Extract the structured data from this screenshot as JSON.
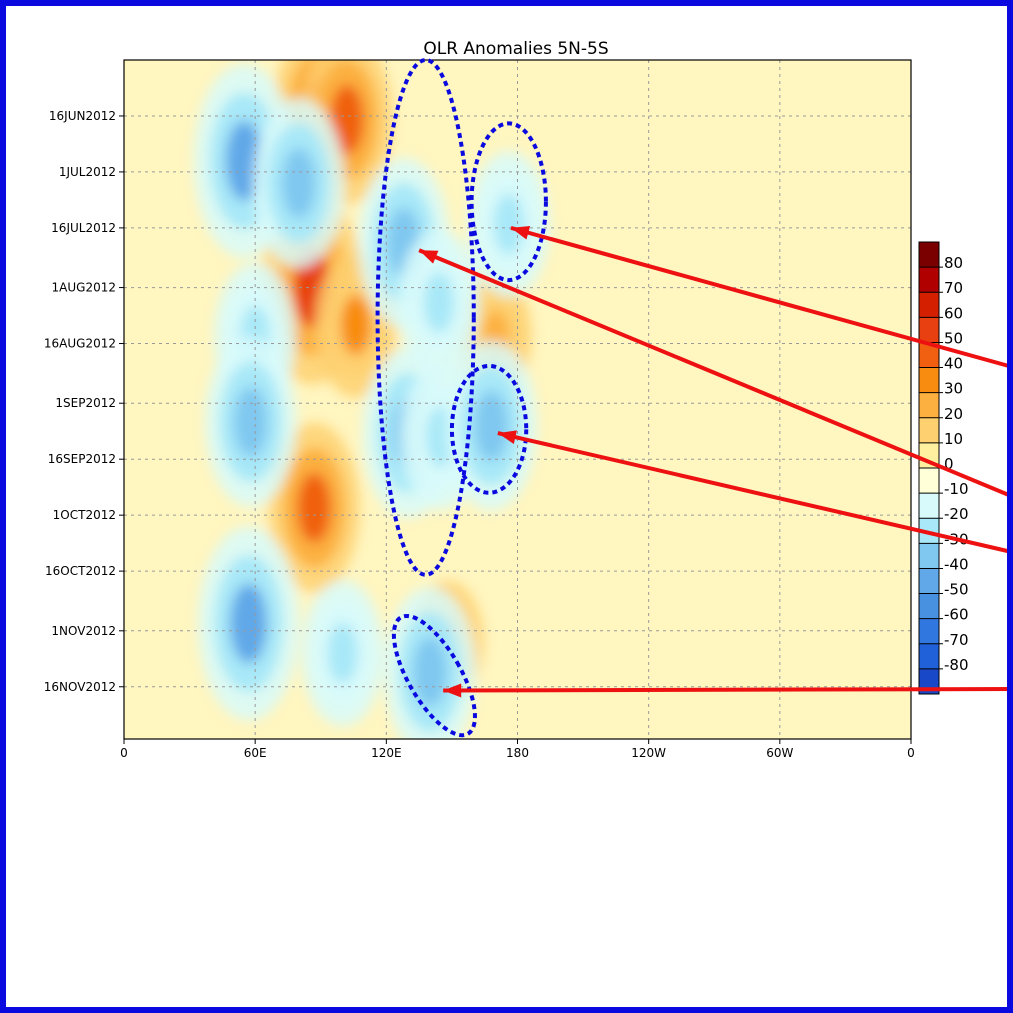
{
  "chart_data": {
    "type": "heatmap",
    "title": "OLR Anomalies 5N-5S",
    "xlabel": "",
    "ylabel": "",
    "x_ticks": [
      "0",
      "60E",
      "120E",
      "180",
      "120W",
      "60W",
      "0"
    ],
    "x_tick_values": [
      0,
      60,
      120,
      180,
      240,
      300,
      360
    ],
    "y_ticks": [
      "16JUN2012",
      "1JUL2012",
      "16JUL2012",
      "1AUG2012",
      "16AUG2012",
      "1SEP2012",
      "16SEP2012",
      "1OCT2012",
      "16OCT2012",
      "1NOV2012",
      "16NOV2012"
    ],
    "xlim": [
      0,
      360
    ],
    "ylim": [
      "2012-06-01",
      "2012-11-30"
    ],
    "grid": true,
    "colorbar": {
      "labels": [
        "80",
        "70",
        "60",
        "50",
        "40",
        "30",
        "20",
        "10",
        "0",
        "-10",
        "-20",
        "-30",
        "-40",
        "-50",
        "-60",
        "-70",
        "-80"
      ],
      "colors": [
        "#7a0000",
        "#b00000",
        "#d42000",
        "#e84010",
        "#f06010",
        "#f88c10",
        "#fcb040",
        "#fed070",
        "#fff0a0",
        "#ffffd8",
        "#d8fafa",
        "#a8e8f8",
        "#80c8f0",
        "#60a8e8",
        "#4890e0",
        "#3078e0",
        "#2060d8",
        "#1848c8"
      ]
    },
    "annotations": [
      {
        "shape": "ellipse",
        "style": "dotted",
        "color": "#0a0ae0",
        "lon_center": 138,
        "date_center": "2012-08-09",
        "lon_halfwidth": 22,
        "days_halfheight": 69
      },
      {
        "shape": "ellipse",
        "style": "dotted",
        "color": "#0a0ae0",
        "lon_center": 176,
        "date_center": "2012-07-09",
        "lon_halfwidth": 17,
        "days_halfheight": 21
      },
      {
        "shape": "ellipse",
        "style": "dotted",
        "color": "#0a0ae0",
        "lon_center": 167,
        "date_center": "2012-09-08",
        "lon_halfwidth": 17,
        "days_halfheight": 17
      },
      {
        "shape": "ellipse",
        "style": "dotted",
        "color": "#0a0ae0",
        "lon_center": 142,
        "date_center": "2012-11-13",
        "lon_halfwidth": 12,
        "days_halfheight": 18,
        "rotation_deg": -30
      }
    ],
    "arrows": [
      {
        "color": "#ee1111",
        "to_lon": 177,
        "to_date": "2012-07-16"
      },
      {
        "color": "#ee1111",
        "to_lon": 135,
        "to_date": "2012-07-22"
      },
      {
        "color": "#ee1111",
        "to_lon": 171,
        "to_date": "2012-09-09"
      },
      {
        "color": "#ee1111",
        "to_lon": 146,
        "to_date": "2012-11-17"
      }
    ],
    "features": [
      {
        "sign": "positive",
        "lon": 89,
        "date": "2012-06-15",
        "value": 40
      },
      {
        "sign": "positive",
        "lon": 86,
        "date": "2012-08-01",
        "value": 50
      },
      {
        "sign": "positive",
        "lon": 87,
        "date": "2012-09-29",
        "value": 40
      },
      {
        "sign": "positive",
        "lon": 102,
        "date": "2012-06-17",
        "value": 40
      },
      {
        "sign": "positive",
        "lon": 106,
        "date": "2012-08-11",
        "value": 30
      },
      {
        "sign": "positive",
        "lon": 148,
        "date": "2012-11-04",
        "value": 20
      },
      {
        "sign": "positive",
        "lon": 170,
        "date": "2012-08-14",
        "value": 20
      },
      {
        "sign": "negative",
        "lon": 55,
        "date": "2012-06-28",
        "value": -50
      },
      {
        "sign": "negative",
        "lon": 60,
        "date": "2012-08-14",
        "value": -30
      },
      {
        "sign": "negative",
        "lon": 58,
        "date": "2012-09-06",
        "value": -40
      },
      {
        "sign": "negative",
        "lon": 57,
        "date": "2012-10-30",
        "value": -50
      },
      {
        "sign": "negative",
        "lon": 128,
        "date": "2012-07-20",
        "value": -40
      },
      {
        "sign": "negative",
        "lon": 144,
        "date": "2012-08-05",
        "value": -30
      },
      {
        "sign": "negative",
        "lon": 130,
        "date": "2012-09-09",
        "value": -40
      },
      {
        "sign": "negative",
        "lon": 145,
        "date": "2012-09-10",
        "value": -30
      },
      {
        "sign": "negative",
        "lon": 168,
        "date": "2012-09-07",
        "value": -40
      },
      {
        "sign": "negative",
        "lon": 176,
        "date": "2012-07-15",
        "value": -30
      },
      {
        "sign": "negative",
        "lon": 140,
        "date": "2012-11-12",
        "value": -40
      },
      {
        "sign": "negative",
        "lon": 80,
        "date": "2012-07-04",
        "value": -40
      },
      {
        "sign": "negative",
        "lon": 100,
        "date": "2012-11-07",
        "value": -30
      }
    ]
  }
}
